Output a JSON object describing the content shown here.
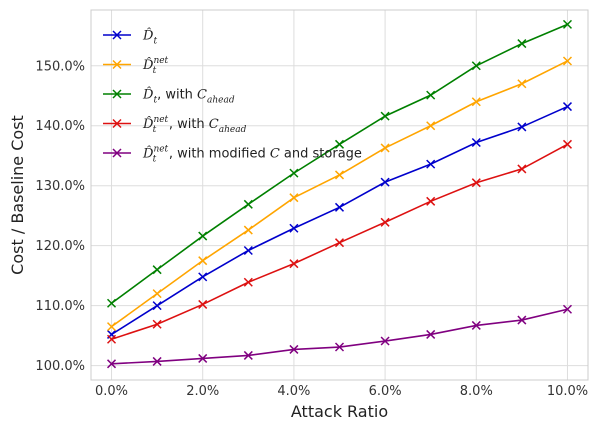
{
  "chart_data": {
    "type": "line",
    "xlabel": "Attack Ratio",
    "ylabel": "Cost / Baseline Cost",
    "x": [
      0,
      1,
      2,
      3,
      4,
      5,
      6,
      7,
      8,
      9,
      10
    ],
    "x_tick_labels": [
      "0.0%",
      "2.0%",
      "4.0%",
      "6.0%",
      "8.0%",
      "10.0%"
    ],
    "x_tick_values": [
      0,
      2,
      4,
      6,
      8,
      10
    ],
    "y_tick_labels": [
      "100.0%",
      "110.0%",
      "120.0%",
      "130.0%",
      "140.0%",
      "150.0%"
    ],
    "y_tick_values": [
      100,
      110,
      120,
      130,
      140,
      150
    ],
    "xlim": [
      -0.45,
      10.45
    ],
    "ylim": [
      97.6,
      159.3
    ],
    "grid": true,
    "legend_position": "top-left",
    "marker": "x",
    "series": [
      {
        "name": "D̂_t",
        "legend": {
          "base": "D̂",
          "sub": "t",
          "sup": "",
          "suffix": ""
        },
        "color": "#0000cc",
        "values": [
          105.2,
          110.0,
          114.8,
          119.2,
          122.9,
          126.4,
          130.6,
          133.6,
          137.2,
          139.8,
          143.2
        ]
      },
      {
        "name": "D̂_t^net",
        "legend": {
          "base": "D̂",
          "sub": "t",
          "sup": "net",
          "suffix": ""
        },
        "color": "#ffa500",
        "values": [
          106.5,
          112.0,
          117.5,
          122.6,
          128.0,
          131.8,
          136.3,
          140.0,
          144.0,
          147.0,
          150.8
        ]
      },
      {
        "name": "D̂_t, with C_ahead",
        "legend": {
          "base": "D̂",
          "sub": "t",
          "sup": "",
          "suffix": ", with ",
          "cal": "C",
          "cal_sub": "ahead",
          "tail": ""
        },
        "color": "#008000",
        "values": [
          110.4,
          116.0,
          121.6,
          126.9,
          132.1,
          136.9,
          141.6,
          145.1,
          150.0,
          153.7,
          156.9
        ]
      },
      {
        "name": "D̂_t^net, with C_ahead",
        "legend": {
          "base": "D̂",
          "sub": "t",
          "sup": "net",
          "suffix": ", with ",
          "cal": "C",
          "cal_sub": "ahead",
          "tail": ""
        },
        "color": "#dd1111",
        "values": [
          104.4,
          106.9,
          110.2,
          113.9,
          117.0,
          120.5,
          123.9,
          127.4,
          130.5,
          132.8,
          136.9
        ]
      },
      {
        "name": "D̂_t^net, with modified C and storage",
        "legend": {
          "base": "D̂",
          "sub": "t",
          "sup": "net",
          "suffix": ", with modified ",
          "cal": "C",
          "cal_sub": "",
          "tail": " and storage"
        },
        "color": "#800080",
        "values": [
          100.3,
          100.7,
          101.2,
          101.7,
          102.7,
          103.1,
          104.1,
          105.2,
          106.7,
          107.6,
          109.4
        ]
      }
    ]
  }
}
